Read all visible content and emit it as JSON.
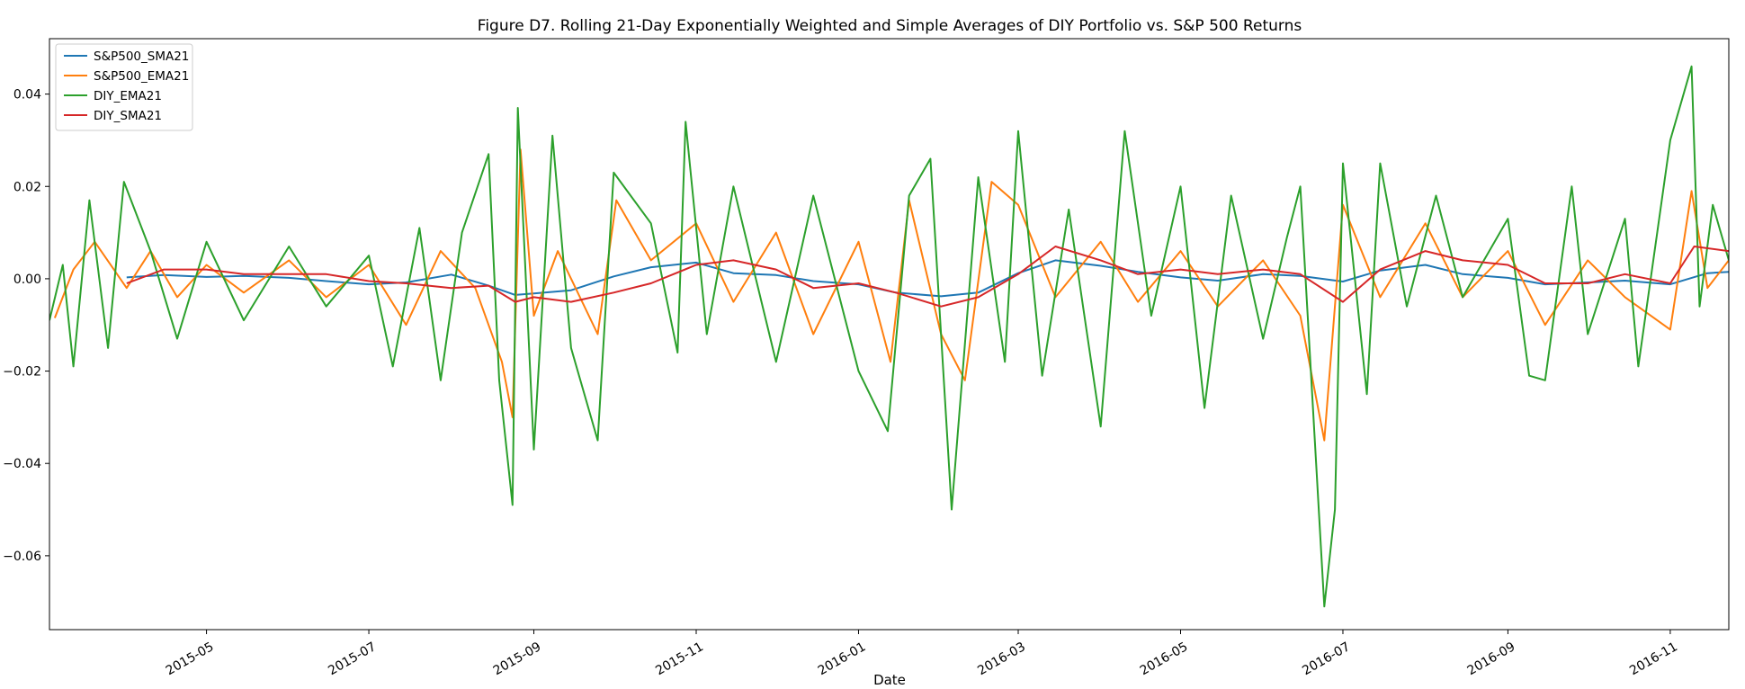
{
  "chart_data": {
    "type": "line",
    "title": "Figure D7. Rolling 21-Day Exponentially Weighted and Simple Averages of DIY Portfolio vs. S&P 500 Returns",
    "xlabel": "Date",
    "ylabel": "",
    "xlim": [
      "2015-03-03",
      "2016-11-23"
    ],
    "ylim": [
      -0.076,
      0.052
    ],
    "x_ticks": [
      "2015-05",
      "2015-07",
      "2015-09",
      "2015-11",
      "2016-01",
      "2016-03",
      "2016-05",
      "2016-07",
      "2016-09",
      "2016-11"
    ],
    "y_ticks": [
      -0.06,
      -0.04,
      -0.02,
      0.0,
      0.02,
      0.04
    ],
    "y_tick_labels": [
      "−0.06",
      "−0.04",
      "−0.02",
      "0.00",
      "0.02",
      "0.04"
    ],
    "grid": false,
    "legend_position": "top-left",
    "series": [
      {
        "name": "S&P500_SMA21",
        "color": "#1f77b4",
        "points": [
          [
            "2015-04-01",
            0.0003
          ],
          [
            "2015-04-15",
            0.0008
          ],
          [
            "2015-05-01",
            0.0004
          ],
          [
            "2015-05-15",
            0.0006
          ],
          [
            "2015-06-01",
            0.0002
          ],
          [
            "2015-06-15",
            -0.0005
          ],
          [
            "2015-07-01",
            -0.0012
          ],
          [
            "2015-07-15",
            -0.0008
          ],
          [
            "2015-08-01",
            0.0009
          ],
          [
            "2015-08-15",
            -0.0015
          ],
          [
            "2015-08-25",
            -0.0035
          ],
          [
            "2015-09-01",
            -0.0032
          ],
          [
            "2015-09-15",
            -0.0025
          ],
          [
            "2015-10-01",
            0.0005
          ],
          [
            "2015-10-15",
            0.0025
          ],
          [
            "2015-11-01",
            0.0035
          ],
          [
            "2015-11-15",
            0.0012
          ],
          [
            "2015-12-01",
            0.0008
          ],
          [
            "2015-12-15",
            -0.0005
          ],
          [
            "2016-01-01",
            -0.0012
          ],
          [
            "2016-01-15",
            -0.003
          ],
          [
            "2016-02-01",
            -0.0038
          ],
          [
            "2016-02-15",
            -0.003
          ],
          [
            "2016-03-01",
            0.0012
          ],
          [
            "2016-03-15",
            0.004
          ],
          [
            "2016-04-01",
            0.0028
          ],
          [
            "2016-04-15",
            0.0015
          ],
          [
            "2016-05-01",
            0.0003
          ],
          [
            "2016-05-15",
            -0.0004
          ],
          [
            "2016-06-01",
            0.001
          ],
          [
            "2016-06-15",
            0.0006
          ],
          [
            "2016-07-01",
            -0.0006
          ],
          [
            "2016-07-15",
            0.0018
          ],
          [
            "2016-08-01",
            0.003
          ],
          [
            "2016-08-15",
            0.001
          ],
          [
            "2016-09-01",
            0.0002
          ],
          [
            "2016-09-15",
            -0.0012
          ],
          [
            "2016-10-01",
            -0.0008
          ],
          [
            "2016-10-15",
            -0.0004
          ],
          [
            "2016-11-01",
            -0.0012
          ],
          [
            "2016-11-15",
            0.0012
          ],
          [
            "2016-11-23",
            0.0015
          ]
        ]
      },
      {
        "name": "S&P500_EMA21",
        "color": "#ff7f0e",
        "points": [
          [
            "2015-03-05",
            -0.0085
          ],
          [
            "2015-03-12",
            0.002
          ],
          [
            "2015-03-20",
            0.008
          ],
          [
            "2015-04-01",
            -0.002
          ],
          [
            "2015-04-10",
            0.006
          ],
          [
            "2015-04-20",
            -0.004
          ],
          [
            "2015-05-01",
            0.003
          ],
          [
            "2015-05-15",
            -0.003
          ],
          [
            "2015-06-01",
            0.004
          ],
          [
            "2015-06-15",
            -0.004
          ],
          [
            "2015-07-01",
            0.003
          ],
          [
            "2015-07-15",
            -0.01
          ],
          [
            "2015-07-28",
            0.006
          ],
          [
            "2015-08-10",
            -0.002
          ],
          [
            "2015-08-20",
            -0.018
          ],
          [
            "2015-08-24",
            -0.03
          ],
          [
            "2015-08-27",
            0.028
          ],
          [
            "2015-09-01",
            -0.008
          ],
          [
            "2015-09-10",
            0.006
          ],
          [
            "2015-09-25",
            -0.012
          ],
          [
            "2015-10-02",
            0.017
          ],
          [
            "2015-10-15",
            0.004
          ],
          [
            "2015-11-01",
            0.012
          ],
          [
            "2015-11-15",
            -0.005
          ],
          [
            "2015-12-01",
            0.01
          ],
          [
            "2015-12-15",
            -0.012
          ],
          [
            "2016-01-01",
            0.008
          ],
          [
            "2016-01-13",
            -0.018
          ],
          [
            "2016-01-20",
            0.017
          ],
          [
            "2016-02-01",
            -0.012
          ],
          [
            "2016-02-10",
            -0.022
          ],
          [
            "2016-02-20",
            0.021
          ],
          [
            "2016-03-01",
            0.016
          ],
          [
            "2016-03-15",
            -0.004
          ],
          [
            "2016-04-01",
            0.008
          ],
          [
            "2016-04-15",
            -0.005
          ],
          [
            "2016-05-01",
            0.006
          ],
          [
            "2016-05-15",
            -0.006
          ],
          [
            "2016-06-01",
            0.004
          ],
          [
            "2016-06-15",
            -0.008
          ],
          [
            "2016-06-24",
            -0.035
          ],
          [
            "2016-07-01",
            0.016
          ],
          [
            "2016-07-15",
            -0.004
          ],
          [
            "2016-08-01",
            0.012
          ],
          [
            "2016-08-15",
            -0.004
          ],
          [
            "2016-09-01",
            0.006
          ],
          [
            "2016-09-15",
            -0.01
          ],
          [
            "2016-10-01",
            0.004
          ],
          [
            "2016-10-15",
            -0.004
          ],
          [
            "2016-11-01",
            -0.011
          ],
          [
            "2016-11-09",
            0.019
          ],
          [
            "2016-11-15",
            -0.002
          ],
          [
            "2016-11-23",
            0.004
          ]
        ]
      },
      {
        "name": "DIY_EMA21",
        "color": "#2ca02c",
        "points": [
          [
            "2015-03-03",
            -0.009
          ],
          [
            "2015-03-08",
            0.003
          ],
          [
            "2015-03-12",
            -0.019
          ],
          [
            "2015-03-18",
            0.017
          ],
          [
            "2015-03-25",
            -0.015
          ],
          [
            "2015-03-31",
            0.021
          ],
          [
            "2015-04-10",
            0.006
          ],
          [
            "2015-04-20",
            -0.013
          ],
          [
            "2015-05-01",
            0.008
          ],
          [
            "2015-05-15",
            -0.009
          ],
          [
            "2015-06-01",
            0.007
          ],
          [
            "2015-06-15",
            -0.006
          ],
          [
            "2015-07-01",
            0.005
          ],
          [
            "2015-07-10",
            -0.019
          ],
          [
            "2015-07-20",
            0.011
          ],
          [
            "2015-07-28",
            -0.022
          ],
          [
            "2015-08-05",
            0.01
          ],
          [
            "2015-08-15",
            0.027
          ],
          [
            "2015-08-19",
            -0.022
          ],
          [
            "2015-08-24",
            -0.049
          ],
          [
            "2015-08-26",
            0.037
          ],
          [
            "2015-09-01",
            -0.037
          ],
          [
            "2015-09-08",
            0.031
          ],
          [
            "2015-09-15",
            -0.015
          ],
          [
            "2015-09-25",
            -0.035
          ],
          [
            "2015-10-01",
            0.023
          ],
          [
            "2015-10-15",
            0.012
          ],
          [
            "2015-10-25",
            -0.016
          ],
          [
            "2015-10-28",
            0.034
          ],
          [
            "2015-11-05",
            -0.012
          ],
          [
            "2015-11-15",
            0.02
          ],
          [
            "2015-12-01",
            -0.018
          ],
          [
            "2015-12-15",
            0.018
          ],
          [
            "2016-01-01",
            -0.02
          ],
          [
            "2016-01-12",
            -0.033
          ],
          [
            "2016-01-20",
            0.018
          ],
          [
            "2016-01-28",
            0.026
          ],
          [
            "2016-02-05",
            -0.05
          ],
          [
            "2016-02-15",
            0.022
          ],
          [
            "2016-02-25",
            -0.018
          ],
          [
            "2016-03-01",
            0.032
          ],
          [
            "2016-03-10",
            -0.021
          ],
          [
            "2016-03-20",
            0.015
          ],
          [
            "2016-04-01",
            -0.032
          ],
          [
            "2016-04-10",
            0.032
          ],
          [
            "2016-04-20",
            -0.008
          ],
          [
            "2016-05-01",
            0.02
          ],
          [
            "2016-05-10",
            -0.028
          ],
          [
            "2016-05-20",
            0.018
          ],
          [
            "2016-06-01",
            -0.013
          ],
          [
            "2016-06-10",
            0.009
          ],
          [
            "2016-06-15",
            0.02
          ],
          [
            "2016-06-24",
            -0.071
          ],
          [
            "2016-06-28",
            -0.05
          ],
          [
            "2016-07-01",
            0.025
          ],
          [
            "2016-07-10",
            -0.025
          ],
          [
            "2016-07-15",
            0.025
          ],
          [
            "2016-07-25",
            -0.006
          ],
          [
            "2016-08-05",
            0.018
          ],
          [
            "2016-08-15",
            -0.004
          ],
          [
            "2016-09-01",
            0.013
          ],
          [
            "2016-09-09",
            -0.021
          ],
          [
            "2016-09-15",
            -0.022
          ],
          [
            "2016-09-25",
            0.02
          ],
          [
            "2016-10-01",
            -0.012
          ],
          [
            "2016-10-15",
            0.013
          ],
          [
            "2016-10-20",
            -0.019
          ],
          [
            "2016-11-01",
            0.03
          ],
          [
            "2016-11-09",
            0.046
          ],
          [
            "2016-11-12",
            -0.006
          ],
          [
            "2016-11-17",
            0.016
          ],
          [
            "2016-11-23",
            0.004
          ]
        ]
      },
      {
        "name": "DIY_SMA21",
        "color": "#d62728",
        "points": [
          [
            "2015-04-01",
            -0.001
          ],
          [
            "2015-04-15",
            0.002
          ],
          [
            "2015-05-01",
            0.002
          ],
          [
            "2015-05-15",
            0.001
          ],
          [
            "2015-06-01",
            0.001
          ],
          [
            "2015-06-15",
            0.001
          ],
          [
            "2015-07-01",
            -0.0005
          ],
          [
            "2015-07-15",
            -0.001
          ],
          [
            "2015-08-01",
            -0.002
          ],
          [
            "2015-08-15",
            -0.0015
          ],
          [
            "2015-08-25",
            -0.005
          ],
          [
            "2015-09-01",
            -0.004
          ],
          [
            "2015-09-15",
            -0.005
          ],
          [
            "2015-10-01",
            -0.003
          ],
          [
            "2015-10-15",
            -0.001
          ],
          [
            "2015-11-01",
            0.003
          ],
          [
            "2015-11-15",
            0.004
          ],
          [
            "2015-12-01",
            0.002
          ],
          [
            "2015-12-15",
            -0.002
          ],
          [
            "2016-01-01",
            -0.001
          ],
          [
            "2016-01-15",
            -0.003
          ],
          [
            "2016-02-01",
            -0.006
          ],
          [
            "2016-02-15",
            -0.004
          ],
          [
            "2016-03-01",
            0.001
          ],
          [
            "2016-03-15",
            0.007
          ],
          [
            "2016-04-01",
            0.004
          ],
          [
            "2016-04-15",
            0.001
          ],
          [
            "2016-05-01",
            0.002
          ],
          [
            "2016-05-15",
            0.001
          ],
          [
            "2016-06-01",
            0.002
          ],
          [
            "2016-06-15",
            0.001
          ],
          [
            "2016-07-01",
            -0.005
          ],
          [
            "2016-07-15",
            0.002
          ],
          [
            "2016-08-01",
            0.006
          ],
          [
            "2016-08-15",
            0.004
          ],
          [
            "2016-09-01",
            0.003
          ],
          [
            "2016-09-15",
            -0.001
          ],
          [
            "2016-10-01",
            -0.001
          ],
          [
            "2016-10-15",
            0.001
          ],
          [
            "2016-11-01",
            -0.001
          ],
          [
            "2016-11-10",
            0.007
          ],
          [
            "2016-11-23",
            0.006
          ]
        ]
      }
    ]
  }
}
